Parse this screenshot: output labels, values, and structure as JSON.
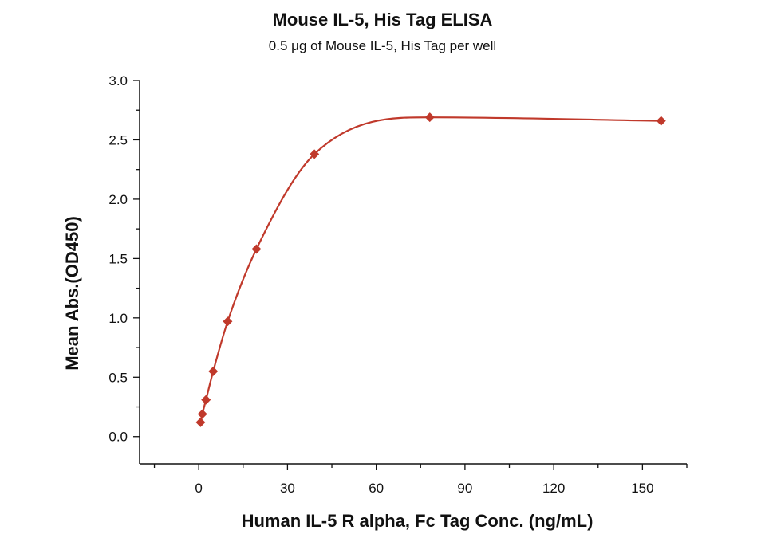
{
  "chart_data": {
    "type": "scatter",
    "title": "Mouse IL-5, His Tag ELISA",
    "subtitle": "0.5 μg of Mouse IL-5, His Tag per well",
    "xlabel": "Human IL-5 R alpha, Fc Tag Conc. (ng/mL)",
    "ylabel": "Mean Abs.(OD450)",
    "xlim": [
      -20,
      165
    ],
    "ylim": [
      -0.23,
      3.0
    ],
    "x_ticks": [
      "0",
      "30",
      "60",
      "90",
      "120",
      "150"
    ],
    "y_ticks": [
      "0.0",
      "0.5",
      "1.0",
      "1.5",
      "2.0",
      "2.5",
      "3.0"
    ],
    "grid": false,
    "series": [
      {
        "marker": "diamond",
        "color": "#c0392b",
        "x": [
          0.61,
          1.22,
          2.44,
          4.88,
          9.77,
          19.5,
          39.1,
          78.1,
          156.3
        ],
        "y": [
          0.12,
          0.19,
          0.31,
          0.55,
          0.97,
          1.58,
          2.38,
          2.69,
          2.66
        ],
        "fit_curve": true
      }
    ]
  }
}
